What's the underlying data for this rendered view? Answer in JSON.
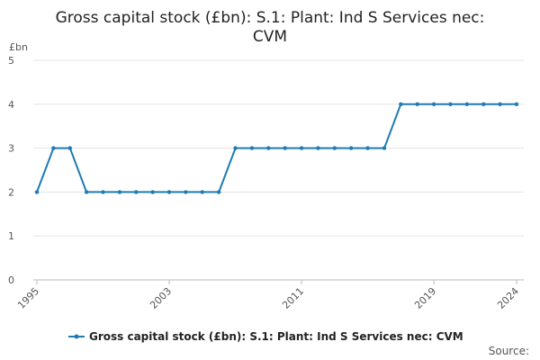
{
  "chart_data": {
    "type": "line",
    "title_lines": [
      "Gross capital stock (£bn): S.1: Plant: Ind S Services nec:",
      "CVM"
    ],
    "ylabel": "£bn",
    "ylim": [
      0,
      5
    ],
    "yticks": [
      0,
      1,
      2,
      3,
      4,
      5
    ],
    "xlim": [
      1995,
      2024
    ],
    "xticks": [
      1995,
      2003,
      2011,
      2019,
      2024
    ],
    "grid": true,
    "legend_position": "bottom",
    "series": [
      {
        "name": "Gross capital stock (£bn): S.1: Plant: Ind S Services nec: CVM",
        "color": "#1f7ab5",
        "x": [
          1995,
          1996,
          1997,
          1998,
          1999,
          2000,
          2001,
          2002,
          2003,
          2004,
          2005,
          2006,
          2007,
          2008,
          2009,
          2010,
          2011,
          2012,
          2013,
          2014,
          2015,
          2016,
          2017,
          2018,
          2019,
          2020,
          2021,
          2022,
          2023,
          2024
        ],
        "values": [
          2,
          3,
          3,
          2,
          2,
          2,
          2,
          2,
          2,
          2,
          2,
          2,
          3,
          3,
          3,
          3,
          3,
          3,
          3,
          3,
          3,
          3,
          4,
          4,
          4,
          4,
          4,
          4,
          4,
          4
        ]
      }
    ],
    "source_label": "Source:"
  }
}
